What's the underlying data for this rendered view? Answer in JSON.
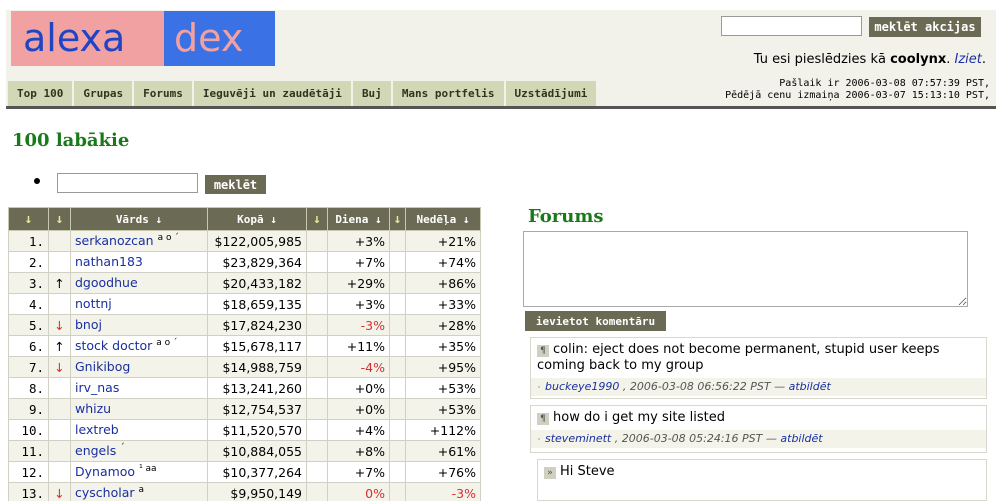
{
  "logo": {
    "part1": "alexa",
    "part2": "dex"
  },
  "header": {
    "search_btn": "meklēt akcijas",
    "logged_prefix": "Tu esi pieslēdzies kā",
    "username": "coolynx",
    "logout": "Iziet",
    "time_now": "Pašlaik ir 2006-03-08 07:57:39 PST,",
    "time_last": "Pēdējā cenu izmaiņa 2006-03-07 15:13:10 PST,"
  },
  "tabs": [
    "Top 100",
    "Grupas",
    "Forums",
    "Ieguvēji un zaudētāji",
    "Buj",
    "Mans portfelis",
    "Uzstādījumi"
  ],
  "left": {
    "title": "100 labākie",
    "search_btn": "meklēt"
  },
  "table": {
    "headers": {
      "arrow": "↓",
      "name": "Vārds ↓",
      "total": "Kopā ↓",
      "day": "Diena ↓",
      "week": "Nedēļa ↓"
    },
    "rows": [
      {
        "rank": "1.",
        "mv": "",
        "name": "serkanozcan",
        "badge": "a o ´",
        "total": "$122,005,985",
        "day": "+3%",
        "week": "+21%"
      },
      {
        "rank": "2.",
        "mv": "",
        "name": "nathan183",
        "badge": "",
        "total": "$23,829,364",
        "day": "+7%",
        "week": "+74%"
      },
      {
        "rank": "3.",
        "mv": "↑",
        "name": "dgoodhue",
        "badge": "",
        "total": "$20,433,182",
        "day": "+29%",
        "week": "+86%"
      },
      {
        "rank": "4.",
        "mv": "",
        "name": "nottnj",
        "badge": "",
        "total": "$18,659,135",
        "day": "+3%",
        "week": "+33%"
      },
      {
        "rank": "5.",
        "mv": "↓",
        "name": "bnoj",
        "badge": "",
        "total": "$17,824,230",
        "day": "-3%",
        "week": "+28%"
      },
      {
        "rank": "6.",
        "mv": "↑",
        "name": "stock doctor",
        "badge": "a o ´",
        "total": "$15,678,117",
        "day": "+11%",
        "week": "+35%"
      },
      {
        "rank": "7.",
        "mv": "↓",
        "name": "Gnikibog",
        "badge": "",
        "total": "$14,988,759",
        "day": "-4%",
        "week": "+95%"
      },
      {
        "rank": "8.",
        "mv": "",
        "name": "irv_nas",
        "badge": "",
        "total": "$13,241,260",
        "day": "+0%",
        "week": "+53%"
      },
      {
        "rank": "9.",
        "mv": "",
        "name": "whizu",
        "badge": "",
        "total": "$12,754,537",
        "day": "+0%",
        "week": "+53%"
      },
      {
        "rank": "10.",
        "mv": "",
        "name": "lextreb",
        "badge": "",
        "total": "$11,520,570",
        "day": "+4%",
        "week": "+112%"
      },
      {
        "rank": "11.",
        "mv": "",
        "name": "engels",
        "badge": "´",
        "total": "$10,884,055",
        "day": "+8%",
        "week": "+61%"
      },
      {
        "rank": "12.",
        "mv": "",
        "name": "Dynamoo",
        "badge": "¹ aa",
        "total": "$10,377,264",
        "day": "+7%",
        "week": "+76%"
      },
      {
        "rank": "13.",
        "mv": "↓",
        "name": "cyscholar",
        "badge": "a",
        "total": "$9,950,149",
        "day": "0%",
        "week": "-3%"
      }
    ]
  },
  "forums": {
    "title": "Forums",
    "post_btn": "ievietot komentāru",
    "posts": [
      {
        "text": "colin: eject does not become permanent, stupid user keeps coming back to my group",
        "user": "buckeye1990",
        "date": ", 2006-03-08 06:56:22 PST —",
        "reply": "atbildēt"
      },
      {
        "text": "how do i get my site listed",
        "user": "steveminett",
        "date": ", 2006-03-08 05:24:16 PST —",
        "reply": "atbildēt"
      },
      {
        "text": "Hi Steve"
      }
    ]
  }
}
